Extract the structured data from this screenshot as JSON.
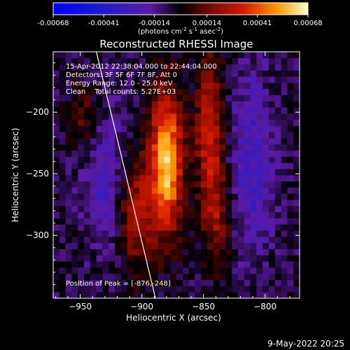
{
  "colorbar": {
    "tick_labels": [
      "-0.00068",
      "-0.00041",
      "-0.00014",
      "0.00014",
      "0.00041",
      "0.00068"
    ],
    "range": [
      -0.00068,
      0.00068
    ],
    "unit_line": "(photons cm",
    "unit_sup1": "-2",
    "unit_s": " s",
    "unit_sup2": "-1",
    "unit_asec": " asec",
    "unit_sup3": "-2",
    "unit_close": ")"
  },
  "chart_data": {
    "type": "heatmap",
    "title": "Reconstructed RHESSI Image",
    "xlabel": "Heliocentric X (arcsec)",
    "ylabel": "Heliocentric Y (arcsec)",
    "xlim": [
      -972,
      -772
    ],
    "ylim": [
      -351,
      -151
    ],
    "x_ticks": [
      -950,
      -900,
      -850,
      -800
    ],
    "y_ticks": [
      -200,
      -250,
      -300
    ],
    "x_tick_labels": [
      "−950",
      "−900",
      "−850",
      "−800"
    ],
    "y_tick_labels": [
      "−200",
      "−250",
      "−300"
    ],
    "annotations": [
      "15-Apr-2012 22:38:04.000 to 22:44:04.000",
      "Detectors: 3F 5F 6F 7F 8F, Att 0",
      "Energy Range: 12.0 - 25.0 keV",
      "Clean    Total counts: 5.27E+03"
    ],
    "peak_label": "Position of Peak = [-876,-248]",
    "peak": [
      -876,
      -248
    ],
    "grid": false,
    "limb_line": [
      [
        -937,
        -151
      ],
      [
        -889,
        -351
      ]
    ],
    "sources": [
      {
        "x": -880,
        "y": -240,
        "sx": 9,
        "sy": 40,
        "amp": 0.00068
      },
      {
        "x": -905,
        "y": -280,
        "sx": 10,
        "sy": 35,
        "amp": 0.0003
      },
      {
        "x": -845,
        "y": -220,
        "sx": 8,
        "sy": 45,
        "amp": 0.00038
      },
      {
        "x": -838,
        "y": -290,
        "sx": 8,
        "sy": 25,
        "amp": 0.0002
      },
      {
        "x": -945,
        "y": -205,
        "sx": 10,
        "sy": 20,
        "amp": 0.00018
      },
      {
        "x": -930,
        "y": -250,
        "sx": 12,
        "sy": 40,
        "amp": -0.0002
      },
      {
        "x": -810,
        "y": -240,
        "sx": 12,
        "sy": 50,
        "amp": -0.00022
      }
    ]
  },
  "footer": {
    "date": "9-May-2022 20:25"
  }
}
